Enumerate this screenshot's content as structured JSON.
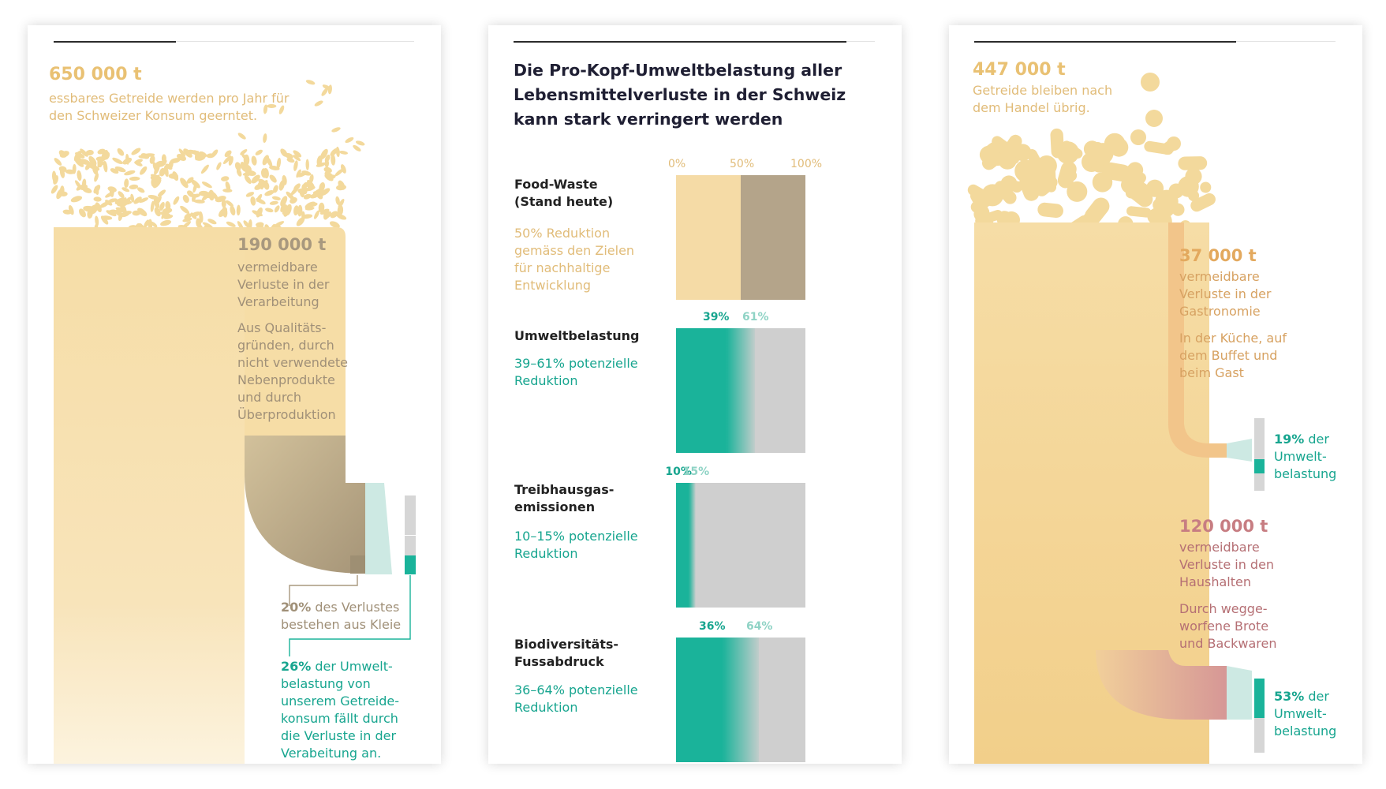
{
  "panel1": {
    "total_amount": "650 000 t",
    "total_desc": "essbares Getreide werden pro Jahr für den Schweizer Konsum geerntet.",
    "loss_amount": "190 000 t",
    "loss_desc": "vermeidbare Verluste in der Verarbeitung",
    "loss_reason": "Aus Qualitäts-gründen, durch nicht verwendete Nebenprodukte und durch Überproduktion",
    "bran_value": "20%",
    "bran_text": "des Verlustes bestehen aus Kleie",
    "impact_value": "26%",
    "impact_text": "der Umwelt-belastung von unserem Getreide-konsum fällt durch die Verluste in der Verabeitung an."
  },
  "panel2": {
    "title": "Die Pro-Kopf-Umweltbelastung aller Lebensmittelverluste in der Schweiz kann stark verringert werden"
  },
  "chart_data": {
    "type": "bar",
    "ticks": [
      "0%",
      "50%",
      "100%"
    ],
    "rows": [
      {
        "label": "Food-Waste (Stand heute)",
        "sublabel": "50% Reduktion gemäss den Zielen für nachhaltige Entwicklung",
        "min": 50,
        "max": 50,
        "min_label": "",
        "max_label": ""
      },
      {
        "label": "Umweltbelastung",
        "sublabel": "39–61% potenzielle Reduktion",
        "min": 39,
        "max": 61,
        "min_label": "39%",
        "max_label": "61%"
      },
      {
        "label": "Treibhausgas-emissionen",
        "sublabel": "10–15% potenzielle Reduktion",
        "min": 10,
        "max": 15,
        "min_label": "10%",
        "max_label": "15%"
      },
      {
        "label": "Biodiversitäts-Fussabdruck",
        "sublabel": "36–64% potenzielle Reduktion",
        "min": 36,
        "max": 64,
        "min_label": "36%",
        "max_label": "64%"
      }
    ],
    "colors": {
      "reduction": "#f5dba6",
      "remaining": "#b4a48a",
      "potential": "#1ab39a",
      "rest": "#cfcfcf"
    }
  },
  "panel3": {
    "total_amount": "447 000 t",
    "total_desc": "Getreide bleiben nach dem Handel übrig.",
    "gastro_amount": "37 000 t",
    "gastro_desc": "vermeidbare Verluste in der Gastronomie",
    "gastro_reason": "In der Küche, auf dem Buffet und beim Gast",
    "gastro_impact_value": "19%",
    "gastro_impact_text": "der Umwelt-belastung",
    "home_amount": "120 000 t",
    "home_desc": "vermeidbare Verluste in den Haushalten",
    "home_reason": "Durch wegge-worfene Brote und Backwaren",
    "home_impact_value": "53%",
    "home_impact_text": "der Umwelt-belastung"
  }
}
